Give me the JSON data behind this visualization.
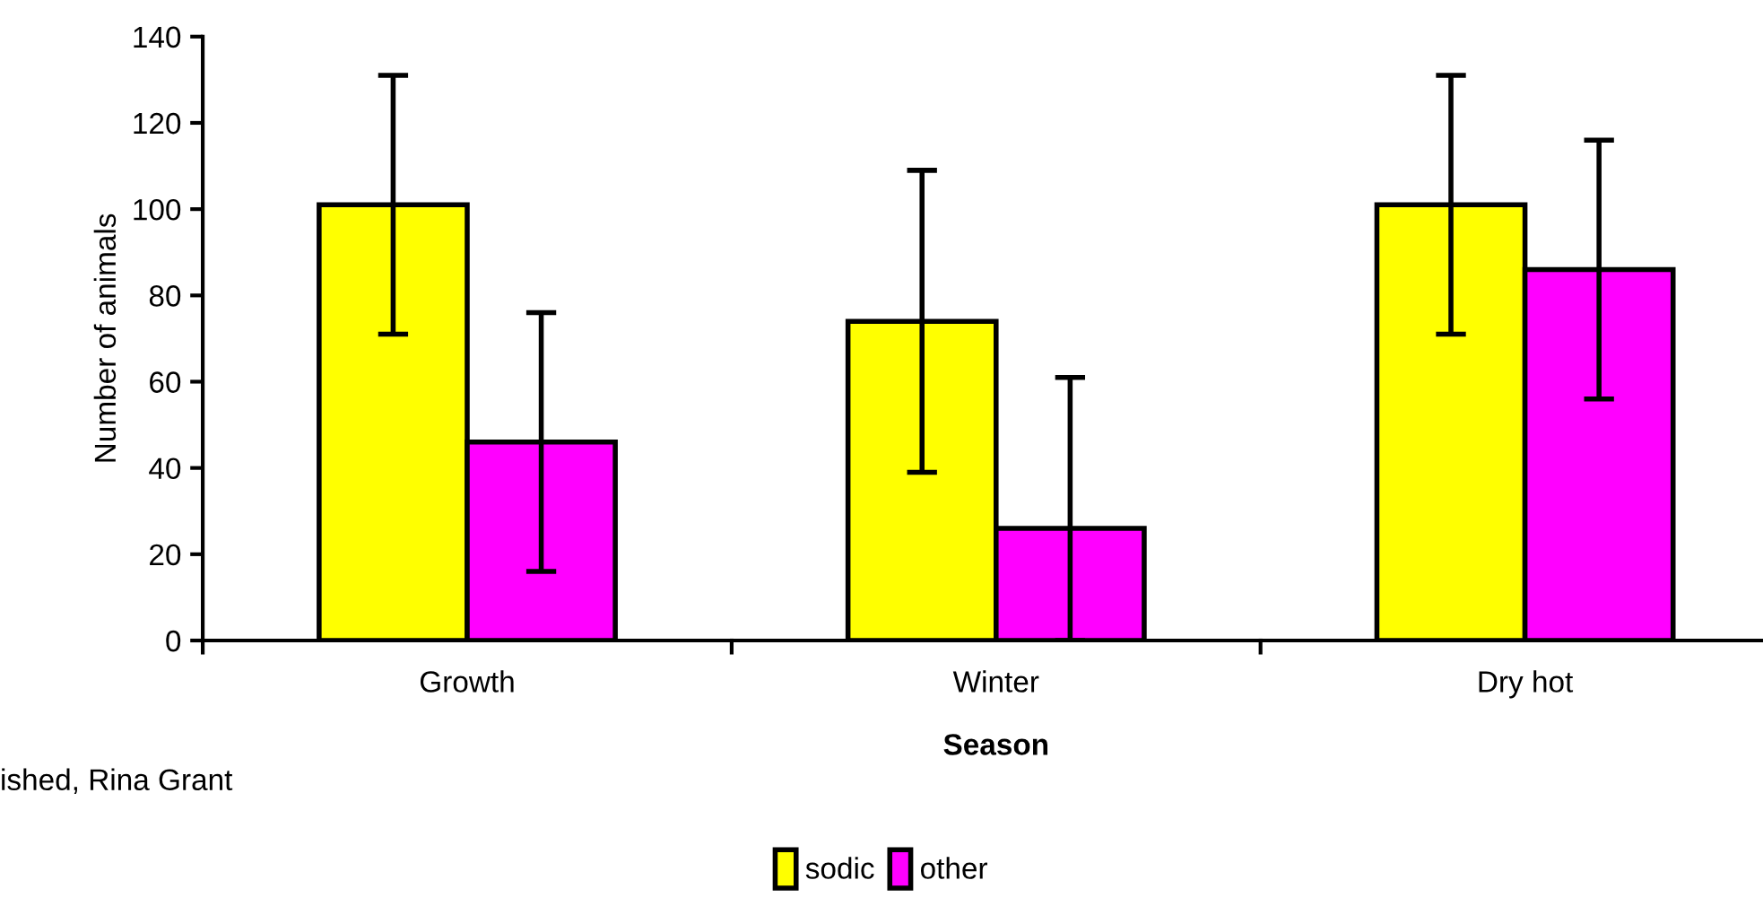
{
  "chart_data": {
    "type": "bar",
    "xlabel": "Season",
    "ylabel": "Number of animals",
    "categories": [
      "Growth",
      "Winter",
      "Dry hot"
    ],
    "series": [
      {
        "name": "sodic",
        "color": "#ffff00",
        "values": [
          101,
          74,
          101
        ],
        "errors": [
          30,
          35,
          30
        ]
      },
      {
        "name": "other",
        "color": "#ff00ff",
        "values": [
          46,
          26,
          86
        ],
        "errors": [
          30,
          [
            0,
            61
          ],
          30
        ]
      }
    ],
    "ylim": [
      0,
      140
    ],
    "yticks": [
      0,
      20,
      40,
      60,
      80,
      100,
      120,
      140
    ],
    "grid": false,
    "legend": "bottom",
    "annotations": [
      "ished, Rina Grant"
    ]
  }
}
